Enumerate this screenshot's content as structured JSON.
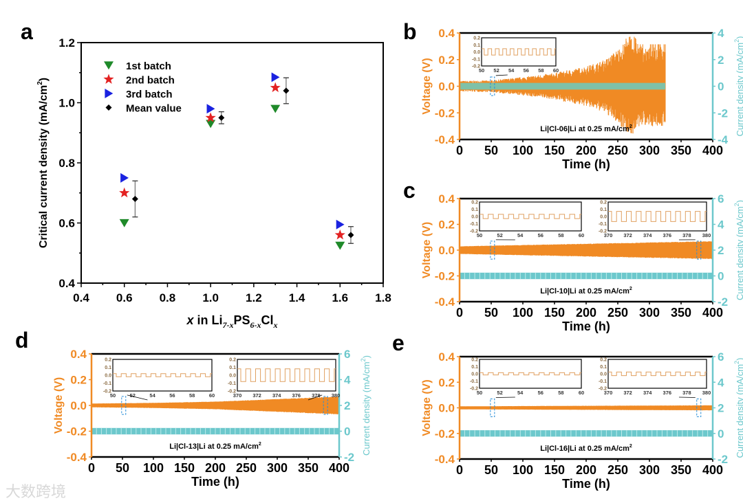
{
  "watermark": "大数跨境",
  "colors": {
    "orange": "#f08a24",
    "teal": "#6cc8cc",
    "green": "#1f8a2a",
    "red": "#e32222",
    "blue": "#1a22e0",
    "black": "#000000",
    "blueDash": "#2a8fd8"
  },
  "chart_data": [
    {
      "panel": "a",
      "type": "scatter",
      "xlabel_parts": [
        "x",
        " in Li",
        "7-x",
        "PS",
        "6-x",
        "Cl",
        "x"
      ],
      "ylabel": "Critical current density (mA/cm",
      "ylabel_sup": "2",
      "ylabel_close": ")",
      "xlim": [
        0.4,
        1.8
      ],
      "ylim": [
        0.4,
        1.2
      ],
      "x_tick_labels": [
        "0.4",
        "0.6",
        "0.8",
        "1.0",
        "1.2",
        "1.4",
        "1.6",
        "1.8"
      ],
      "y_tick_labels": [
        "0.4",
        "0.6",
        "0.8",
        "1.0",
        "1.2"
      ],
      "legend_position": "top-left",
      "x": [
        0.6,
        1.0,
        1.3,
        1.6
      ],
      "series": [
        {
          "name": "1st batch",
          "marker": "triangle-down",
          "color": "#1f8a2a",
          "values": [
            0.6,
            0.93,
            0.98,
            0.525
          ]
        },
        {
          "name": "2nd batch",
          "marker": "star",
          "color": "#e32222",
          "values": [
            0.7,
            0.95,
            1.05,
            0.56
          ]
        },
        {
          "name": "3rd batch",
          "marker": "triangle-right",
          "color": "#1a22e0",
          "values": [
            0.75,
            0.98,
            1.085,
            0.595
          ]
        },
        {
          "name": "Mean value",
          "marker": "diamond",
          "color": "#000000",
          "x_offset": 0.05,
          "values": [
            0.68,
            0.95,
            1.04,
            0.56
          ],
          "error": [
            0.06,
            0.02,
            0.043,
            0.028
          ]
        }
      ]
    },
    {
      "panel": "b",
      "type": "line",
      "annotation": "Li|Cl-06|Li at 0.25 mA/cm",
      "annotation_sup": "2",
      "xlabel": "Time (h)",
      "ylabel": "Voltage (V)",
      "y2label": "Current density (mA/cm",
      "y2label_sup": "2",
      "y2label_close": ")",
      "xlim": [
        0,
        400
      ],
      "ylim": [
        -0.4,
        0.4
      ],
      "y2lim": [
        -4,
        4
      ],
      "x_tick_labels": [
        "0",
        "50",
        "100",
        "150",
        "200",
        "250",
        "300",
        "350",
        "400"
      ],
      "y_tick_labels": [
        "-0.4",
        "-0.2",
        "0.0",
        "0.2",
        "0.4"
      ],
      "y2_tick_labels": [
        "-4",
        "-2",
        "0",
        "2",
        "4"
      ],
      "current_density": 0.25,
      "end_time": 325,
      "voltage_envelope": {
        "time": [
          0,
          50,
          100,
          150,
          200,
          230,
          250,
          265,
          275,
          285,
          300,
          325
        ],
        "amplitude": [
          0.04,
          0.045,
          0.07,
          0.1,
          0.15,
          0.2,
          0.28,
          0.35,
          0.36,
          0.3,
          0.3,
          0.3
        ]
      },
      "insets": [
        {
          "xlim": [
            50,
            60
          ],
          "x_tick_labels": [
            "50",
            "52",
            "54",
            "56",
            "58",
            "60"
          ],
          "y_tick_labels": [
            "-0.2",
            "-0.1",
            "0.0",
            "0.1",
            "0.2"
          ],
          "amplitude": 0.045,
          "marked_time": 52
        }
      ]
    },
    {
      "panel": "c",
      "type": "line",
      "annotation": "Li|Cl-10|Li at 0.25 mA/cm",
      "annotation_sup": "2",
      "xlabel": "Time (h)",
      "ylabel": "Voltage (V)",
      "y2label": "Current density (mA/cm",
      "y2label_sup": "2",
      "y2label_close": ")",
      "xlim": [
        0,
        400
      ],
      "ylim": [
        -0.4,
        0.4
      ],
      "y2lim": [
        -2,
        6
      ],
      "x_tick_labels": [
        "0",
        "50",
        "100",
        "150",
        "200",
        "250",
        "300",
        "350",
        "400"
      ],
      "y_tick_labels": [
        "-0.4",
        "-0.2",
        "0.0",
        "0.2",
        "0.4"
      ],
      "y2_tick_labels": [
        "-2",
        "0",
        "2",
        "4",
        "6"
      ],
      "current_density": 0.25,
      "end_time": 400,
      "voltage_envelope": {
        "time": [
          0,
          100,
          200,
          300,
          400
        ],
        "amplitude": [
          0.03,
          0.04,
          0.05,
          0.06,
          0.07
        ]
      },
      "insets": [
        {
          "xlim": [
            50,
            60
          ],
          "x_tick_labels": [
            "50",
            "52",
            "54",
            "56",
            "58",
            "60"
          ],
          "y_tick_labels": [
            "-0.2",
            "-0.1",
            "0.0",
            "0.1",
            "0.2"
          ],
          "amplitude": 0.03,
          "marked_time": 52
        },
        {
          "xlim": [
            370,
            380
          ],
          "x_tick_labels": [
            "370",
            "372",
            "374",
            "376",
            "378",
            "380"
          ],
          "y_tick_labels": [
            "-0.2",
            "-0.1",
            "0.0",
            "0.1",
            "0.2"
          ],
          "amplitude": 0.07,
          "marked_time": 378
        }
      ]
    },
    {
      "panel": "d",
      "type": "line",
      "annotation": "Li|Cl-13|Li at 0.25 mA/cm",
      "annotation_sup": "2",
      "xlabel": "Time (h)",
      "ylabel": "Voltage (V)",
      "y2label": "Current density (mA/cm",
      "y2label_sup": "2",
      "y2label_close": ")",
      "xlim": [
        0,
        400
      ],
      "ylim": [
        -0.4,
        0.4
      ],
      "y2lim": [
        -2,
        6
      ],
      "x_tick_labels": [
        "0",
        "50",
        "100",
        "150",
        "200",
        "250",
        "300",
        "350",
        "400"
      ],
      "y_tick_labels": [
        "-0.4",
        "-0.2",
        "0.0",
        "0.2",
        "0.4"
      ],
      "y2_tick_labels": [
        "-2",
        "0",
        "2",
        "4",
        "6"
      ],
      "current_density": 0.25,
      "end_time": 400,
      "voltage_envelope": {
        "time": [
          0,
          100,
          200,
          300,
          400
        ],
        "amplitude": [
          0.015,
          0.02,
          0.03,
          0.05,
          0.07
        ]
      },
      "insets": [
        {
          "xlim": [
            50,
            60
          ],
          "x_tick_labels": [
            "50",
            "52",
            "54",
            "56",
            "58",
            "60"
          ],
          "y_tick_labels": [
            "-0.2",
            "-0.1",
            "0.0",
            "0.1",
            "0.2"
          ],
          "amplitude": 0.02,
          "marked_time": 52
        },
        {
          "xlim": [
            370,
            380
          ],
          "x_tick_labels": [
            "370",
            "372",
            "374",
            "376",
            "378",
            "380"
          ],
          "y_tick_labels": [
            "-0.2",
            "-0.1",
            "0.0",
            "0.1",
            "0.2"
          ],
          "amplitude": 0.08,
          "marked_time": 378
        }
      ]
    },
    {
      "panel": "e",
      "type": "line",
      "annotation": "Li|Cl-16|Li at 0.25 mA/cm",
      "annotation_sup": "2",
      "xlabel": "Time (h)",
      "ylabel": "Voltage (V)",
      "y2label": "Current density (mA/cm",
      "y2label_sup": "2",
      "y2label_close": ")",
      "xlim": [
        0,
        400
      ],
      "ylim": [
        -0.4,
        0.4
      ],
      "y2lim": [
        -2,
        6
      ],
      "x_tick_labels": [
        "0",
        "50",
        "100",
        "150",
        "200",
        "250",
        "300",
        "350",
        "400"
      ],
      "y_tick_labels": [
        "-0.4",
        "-0.2",
        "0.0",
        "0.2",
        "0.4"
      ],
      "y2_tick_labels": [
        "-2",
        "0",
        "2",
        "4",
        "6"
      ],
      "current_density": 0.25,
      "end_time": 400,
      "voltage_envelope": {
        "time": [
          0,
          200,
          400
        ],
        "amplitude": [
          0.012,
          0.016,
          0.02
        ]
      },
      "insets": [
        {
          "xlim": [
            50,
            60
          ],
          "x_tick_labels": [
            "50",
            "52",
            "54",
            "56",
            "58",
            "60"
          ],
          "y_tick_labels": [
            "-0.2",
            "-0.1",
            "0.0",
            "0.1",
            "0.2"
          ],
          "amplitude": 0.015,
          "marked_time": 52
        },
        {
          "xlim": [
            370,
            380
          ],
          "x_tick_labels": [
            "370",
            "372",
            "374",
            "376",
            "378",
            "380"
          ],
          "y_tick_labels": [
            "-0.2",
            "-0.1",
            "0.0",
            "0.1",
            "0.2"
          ],
          "amplitude": 0.025,
          "marked_time": 378
        }
      ]
    }
  ]
}
